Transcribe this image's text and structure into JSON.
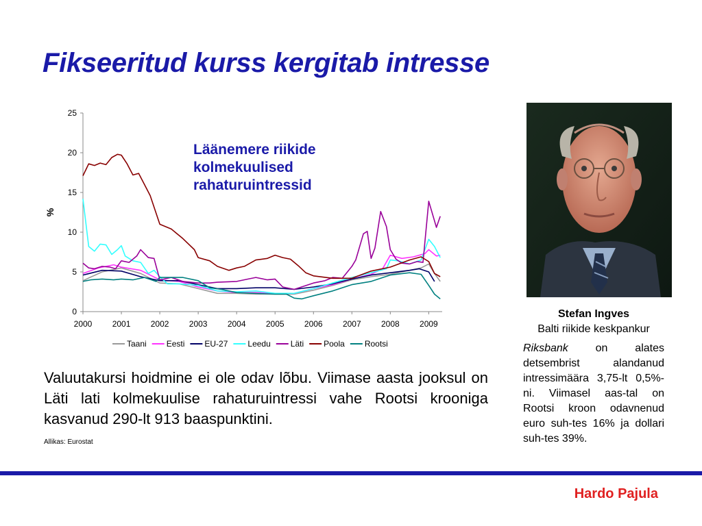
{
  "slide": {
    "title": "Fikseeritud kurss kergitab intresse",
    "body": "Valuutakursi hoidmine ei ole odav lõbu. Viimase aasta jooksul on Läti lati kolmekuulise rahaturuintressi vahe Rootsi krooniga kasvanud 290-lt 913 baaspunktini.",
    "source": "Allikas: Eurostat",
    "author": "Hardo Pajula"
  },
  "caption": {
    "name": "Stefan Ingves",
    "role": "Balti riikide keskpankur",
    "text_italic": "Riksbank",
    "text": " on alates detsembrist alandanud intressimäära 3,75-lt 0,5%-ni. Viimasel aas-tal on Rootsi kroon odavnenud euro suh-tes 16% ja dollari suh-tes 39%."
  },
  "chart_data": {
    "type": "line",
    "annotation": [
      "Läänemere riikide",
      "kolmekuulised",
      "rahaturuintressid"
    ],
    "ylabel": "%",
    "xlabel": "",
    "ylim": [
      0,
      25
    ],
    "xlim": [
      2000,
      2009.35
    ],
    "yticks": [
      "0",
      "5",
      "10",
      "15",
      "20",
      "25"
    ],
    "xticks": [
      "2000",
      "2001",
      "2002",
      "2003",
      "2004",
      "2005",
      "2006",
      "2007",
      "2008",
      "2009"
    ],
    "legend_position": "bottom",
    "series": [
      {
        "name": "Taani",
        "color": "#999999",
        "x": [
          2000,
          2000.5,
          2001,
          2001.5,
          2002,
          2002.5,
          2003,
          2003.5,
          2004,
          2004.5,
          2005,
          2005.5,
          2006,
          2006.5,
          2007,
          2007.5,
          2008,
          2008.5,
          2008.8,
          2009,
          2009.15,
          2009.3
        ],
        "y": [
          3.9,
          5.0,
          5.5,
          4.8,
          3.6,
          3.5,
          2.9,
          2.3,
          2.3,
          2.2,
          2.2,
          2.2,
          2.7,
          3.3,
          4.0,
          4.4,
          4.7,
          5.2,
          5.5,
          6.0,
          4.8,
          3.8
        ]
      },
      {
        "name": "Eesti",
        "color": "#ff33ff",
        "x": [
          2000,
          2000.4,
          2000.8,
          2001,
          2001.5,
          2002,
          2002.5,
          2003,
          2003.5,
          2004,
          2004.5,
          2005,
          2005.5,
          2006,
          2006.5,
          2007,
          2007.5,
          2007.8,
          2008,
          2008.3,
          2008.6,
          2008.9,
          2009,
          2009.2,
          2009.3
        ],
        "y": [
          4.8,
          5.5,
          5.9,
          5.6,
          5.2,
          4.0,
          3.8,
          3.1,
          2.6,
          2.4,
          2.4,
          2.3,
          2.3,
          2.9,
          3.4,
          4.1,
          4.7,
          5.4,
          7.1,
          6.7,
          6.9,
          7.3,
          7.8,
          7.0,
          7.1
        ]
      },
      {
        "name": "EU-27",
        "color": "#000066",
        "x": [
          2000,
          2000.5,
          2001,
          2001.5,
          2002,
          2002.5,
          2003,
          2003.5,
          2004,
          2004.5,
          2005,
          2005.5,
          2006,
          2006.5,
          2007,
          2007.5,
          2008,
          2008.5,
          2008.75,
          2009,
          2009.15
        ],
        "y": [
          4.6,
          5.2,
          5.1,
          4.4,
          3.9,
          3.9,
          3.4,
          2.9,
          2.9,
          3.0,
          3.0,
          2.8,
          3.1,
          3.5,
          4.1,
          4.6,
          4.9,
          5.2,
          5.4,
          5.0,
          3.8
        ]
      },
      {
        "name": "Leedu",
        "color": "#33ffff",
        "x": [
          2000,
          2000.15,
          2000.3,
          2000.45,
          2000.6,
          2000.75,
          2000.9,
          2001,
          2001.1,
          2001.3,
          2001.5,
          2001.7,
          2001.85,
          2002,
          2002.2,
          2002.5,
          2003,
          2003.5,
          2004,
          2004.5,
          2005,
          2005.5,
          2006,
          2006.5,
          2007,
          2007.5,
          2007.9,
          2008,
          2008.2,
          2008.5,
          2008.8,
          2009,
          2009.15,
          2009.3
        ],
        "y": [
          14.2,
          8.2,
          7.6,
          8.5,
          8.4,
          7.2,
          7.8,
          8.3,
          7.0,
          6.4,
          6.2,
          4.8,
          5.2,
          4.4,
          3.5,
          3.5,
          3.3,
          2.6,
          2.5,
          2.6,
          2.3,
          2.3,
          2.9,
          3.6,
          4.3,
          4.9,
          5.4,
          6.5,
          6.4,
          6.0,
          6.5,
          9.1,
          8.2,
          6.8
        ]
      },
      {
        "name": "Läti",
        "color": "#990099",
        "x": [
          2000,
          2000.15,
          2000.3,
          2000.5,
          2000.7,
          2000.85,
          2001,
          2001.2,
          2001.4,
          2001.5,
          2001.7,
          2001.85,
          2002,
          2002.3,
          2002.6,
          2003,
          2003.3,
          2003.5,
          2004,
          2004.3,
          2004.5,
          2004.8,
          2005,
          2005.2,
          2005.5,
          2006,
          2006.3,
          2006.5,
          2006.75,
          2007,
          2007.1,
          2007.3,
          2007.4,
          2007.5,
          2007.6,
          2007.75,
          2007.9,
          2008,
          2008.15,
          2008.3,
          2008.5,
          2008.7,
          2008.85,
          2009,
          2009.2,
          2009.3
        ],
        "y": [
          6.1,
          5.5,
          5.4,
          5.7,
          5.6,
          5.4,
          6.4,
          6.2,
          7.0,
          7.8,
          6.8,
          6.7,
          4.0,
          4.3,
          3.8,
          3.6,
          3.6,
          3.7,
          3.8,
          4.1,
          4.3,
          4.0,
          4.1,
          3.1,
          2.8,
          3.6,
          3.9,
          4.3,
          4.2,
          5.7,
          6.5,
          9.8,
          10.1,
          6.7,
          8.0,
          12.6,
          10.7,
          7.8,
          6.6,
          6.1,
          6.0,
          6.3,
          6.2,
          13.9,
          10.6,
          12.0
        ]
      },
      {
        "name": "Poola",
        "color": "#880000",
        "x": [
          2000,
          2000.15,
          2000.3,
          2000.45,
          2000.6,
          2000.75,
          2000.9,
          2001,
          2001.15,
          2001.3,
          2001.45,
          2001.6,
          2001.75,
          2002,
          2002.3,
          2002.6,
          2002.9,
          2003,
          2003.3,
          2003.5,
          2003.8,
          2004,
          2004.2,
          2004.5,
          2004.8,
          2005,
          2005.2,
          2005.4,
          2005.6,
          2005.8,
          2006,
          2006.5,
          2007,
          2007.5,
          2008,
          2008.5,
          2008.8,
          2009,
          2009.15,
          2009.3
        ],
        "y": [
          17.1,
          18.6,
          18.4,
          18.7,
          18.5,
          19.4,
          19.8,
          19.7,
          18.6,
          17.2,
          17.4,
          16.0,
          14.6,
          11.0,
          10.4,
          9.2,
          7.8,
          6.8,
          6.4,
          5.7,
          5.2,
          5.5,
          5.7,
          6.5,
          6.7,
          7.1,
          6.8,
          6.6,
          5.8,
          4.9,
          4.5,
          4.2,
          4.2,
          5.1,
          5.6,
          6.5,
          6.9,
          6.3,
          4.8,
          4.4
        ]
      },
      {
        "name": "Rootsi",
        "color": "#008080",
        "x": [
          2000,
          2000.2,
          2000.5,
          2000.8,
          2001,
          2001.3,
          2001.6,
          2001.9,
          2002,
          2002.3,
          2002.6,
          2003,
          2003.3,
          2003.6,
          2004,
          2004.5,
          2005,
          2005.3,
          2005.5,
          2005.7,
          2006,
          2006.5,
          2007,
          2007.5,
          2008,
          2008.5,
          2008.8,
          2009,
          2009.15,
          2009.3
        ],
        "y": [
          3.8,
          4.0,
          4.1,
          4.0,
          4.1,
          4.0,
          4.3,
          3.8,
          4.3,
          4.3,
          4.3,
          3.9,
          3.0,
          2.8,
          2.4,
          2.3,
          2.2,
          2.2,
          1.7,
          1.6,
          2.0,
          2.6,
          3.4,
          3.8,
          4.6,
          4.9,
          4.7,
          3.3,
          2.2,
          1.6
        ]
      }
    ]
  }
}
